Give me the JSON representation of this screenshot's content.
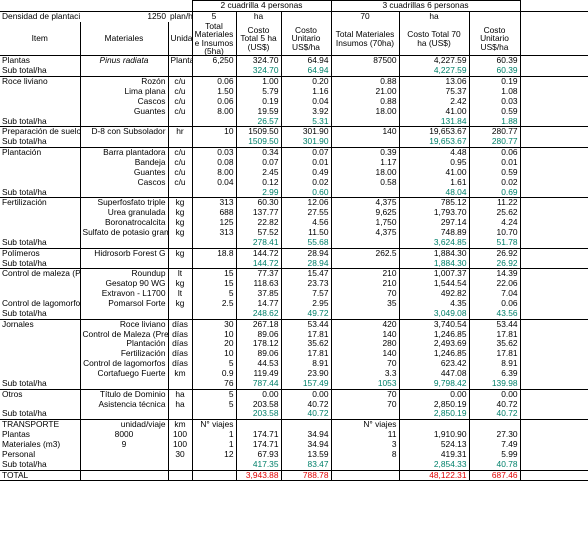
{
  "group_titles": {
    "g1": "2 cuadrilla 4 personas",
    "g2": "3 cuadrillas 6 personas"
  },
  "top_row": [
    "Densidad de plantación",
    "1250",
    "plan/ha",
    "5",
    "ha",
    "",
    "70",
    "ha",
    "",
    ""
  ],
  "header_row": [
    "Item",
    "Materiales",
    "Unidad",
    "Total Materiales e Insumos (5ha)",
    "Costo Total 5 ha (US$)",
    "Costo Unitario US$/ha",
    "Total Materiales Insumos (70ha)",
    "Costo Total 70 ha (US$)",
    "Costo Unitario US$/ha"
  ],
  "rows": [
    {
      "cells": [
        "Plantas",
        "Pinus radiata",
        "Plantas",
        "6,250",
        "324.70",
        "64.94",
        "87500",
        "4,227.59",
        "60.39"
      ],
      "style": "item"
    },
    {
      "cells": [
        "Sub total/ha",
        "",
        "",
        "",
        "324.70",
        "64.94",
        "",
        "4,227.59",
        "60.39"
      ],
      "style": "sub"
    },
    {
      "cells": [
        "Roce liviano",
        "Rozón",
        "c/u",
        "0.06",
        "1.00",
        "0.20",
        "0.88",
        "13.06",
        "0.19"
      ],
      "style": "first"
    },
    {
      "cells": [
        "",
        "Lima plana",
        "c/u",
        "1.50",
        "5.79",
        "1.16",
        "21.00",
        "75.37",
        "1.08"
      ],
      "style": "row"
    },
    {
      "cells": [
        "",
        "Cascos",
        "c/u",
        "0.06",
        "0.19",
        "0.04",
        "0.88",
        "2.42",
        "0.03"
      ],
      "style": "row"
    },
    {
      "cells": [
        "",
        "Guantes",
        "c/u",
        "8.00",
        "19.59",
        "3.92",
        "18.00",
        "41.00",
        "0.59"
      ],
      "style": "row"
    },
    {
      "cells": [
        "Sub total/ha",
        "",
        "",
        "",
        "26.57",
        "5.31",
        "",
        "131.84",
        "1.88"
      ],
      "style": "sub"
    },
    {
      "cells": [
        "Preparación de suelo",
        "D-8 con Subsolador",
        "hr",
        "10",
        "1509.50",
        "301.90",
        "140",
        "19,653.67",
        "280.77"
      ],
      "style": "first"
    },
    {
      "cells": [
        "Sub total/ha",
        "",
        "",
        "",
        "1509.50",
        "301.90",
        "",
        "19,653.67",
        "280.77"
      ],
      "style": "sub"
    },
    {
      "cells": [
        "Plantación",
        "Barra plantadora",
        "c/u",
        "0.03",
        "0.34",
        "0.07",
        "0.39",
        "4.48",
        "0.06"
      ],
      "style": "first"
    },
    {
      "cells": [
        "",
        "Bandeja",
        "c/u",
        "0.08",
        "0.07",
        "0.01",
        "1.17",
        "0.95",
        "0.01"
      ],
      "style": "row"
    },
    {
      "cells": [
        "",
        "Guantes",
        "c/u",
        "8.00",
        "2.45",
        "0.49",
        "18.00",
        "41.00",
        "0.59"
      ],
      "style": "row"
    },
    {
      "cells": [
        "",
        "Cascos",
        "c/u",
        "0.04",
        "0.12",
        "0.02",
        "0.58",
        "1.61",
        "0.02"
      ],
      "style": "row"
    },
    {
      "cells": [
        "Sub total/ha",
        "",
        "",
        "",
        "2.99",
        "0.60",
        "",
        "48.04",
        "0.69"
      ],
      "style": "sub"
    },
    {
      "cells": [
        "Fertilización",
        "Superfosfato triple",
        "kg",
        "313",
        "60.30",
        "12.06",
        "4,375",
        "785.12",
        "11.22"
      ],
      "style": "first"
    },
    {
      "cells": [
        "",
        "Urea granulada",
        "kg",
        "688",
        "137.77",
        "27.55",
        "9,625",
        "1,793.70",
        "25.62"
      ],
      "style": "row"
    },
    {
      "cells": [
        "",
        "Boronatrocalcita",
        "kg",
        "125",
        "22.82",
        "4.56",
        "1,750",
        "297.14",
        "4.24"
      ],
      "style": "row"
    },
    {
      "cells": [
        "",
        "Sulfato de potasio granul.",
        "kg",
        "313",
        "57.52",
        "11.50",
        "4,375",
        "748.89",
        "10.70"
      ],
      "style": "row"
    },
    {
      "cells": [
        "Sub total/ha",
        "",
        "",
        "",
        "278.41",
        "55.68",
        "",
        "3,624.85",
        "51.78"
      ],
      "style": "sub"
    },
    {
      "cells": [
        "Polímeros",
        "Hidrosorb Forest G",
        "kg",
        "18.8",
        "144.72",
        "28.94",
        "262.5",
        "1,884.30",
        "26.92"
      ],
      "style": "first"
    },
    {
      "cells": [
        "Sub total/ha",
        "",
        "",
        "",
        "144.72",
        "28.94",
        "",
        "1,884.30",
        "26.92"
      ],
      "style": "sub"
    },
    {
      "cells": [
        "Control de maleza (Pre)",
        "Roundup",
        "lt",
        "15",
        "77.37",
        "15.47",
        "210",
        "1,007.37",
        "14.39"
      ],
      "style": "first"
    },
    {
      "cells": [
        "",
        "Gesatop 90 WG",
        "kg",
        "15",
        "118.63",
        "23.73",
        "210",
        "1,544.54",
        "22.06"
      ],
      "style": "row"
    },
    {
      "cells": [
        "",
        "Extravon - L1700",
        "lt",
        "5",
        "37.85",
        "7.57",
        "70",
        "492.82",
        "7.04"
      ],
      "style": "row"
    },
    {
      "cells": [
        "Control de lagomorfos",
        "Pomarsol Forte",
        "kg",
        "2.5",
        "14.77",
        "2.95",
        "35",
        "4.35",
        "0.06"
      ],
      "style": "row"
    },
    {
      "cells": [
        "Sub total/ha",
        "",
        "",
        "",
        "248.62",
        "49.72",
        "",
        "3,049.08",
        "43.56"
      ],
      "style": "sub"
    },
    {
      "cells": [
        "Jornales",
        "Roce liviano",
        "días",
        "30",
        "267.18",
        "53.44",
        "420",
        "3,740.54",
        "53.44"
      ],
      "style": "first"
    },
    {
      "cells": [
        "",
        "Control de Maleza (Pre)",
        "días",
        "10",
        "89.06",
        "17.81",
        "140",
        "1,246.85",
        "17.81"
      ],
      "style": "row"
    },
    {
      "cells": [
        "",
        "Plantación",
        "días",
        "20",
        "178.12",
        "35.62",
        "280",
        "2,493.69",
        "35.62"
      ],
      "style": "row"
    },
    {
      "cells": [
        "",
        "Fertilización",
        "días",
        "10",
        "89.06",
        "17.81",
        "140",
        "1,246.85",
        "17.81"
      ],
      "style": "row"
    },
    {
      "cells": [
        "",
        "Control de lagomorfos",
        "días",
        "5",
        "44.53",
        "8.91",
        "70",
        "623.42",
        "8.91"
      ],
      "style": "row"
    },
    {
      "cells": [
        "",
        "Cortafuego Fuerte",
        "km",
        "0.9",
        "119.49",
        "23.90",
        "3.3",
        "447.08",
        "6.39"
      ],
      "style": "row"
    },
    {
      "cells": [
        "Sub total/ha",
        "",
        "",
        "76",
        "787.44",
        "157.49",
        "1053",
        "9,798.42",
        "139.98"
      ],
      "style": "sub"
    },
    {
      "cells": [
        "Otros",
        "Título de Dominio",
        "ha",
        "5",
        "0.00",
        "0.00",
        "70",
        "0.00",
        "0.00"
      ],
      "style": "first"
    },
    {
      "cells": [
        "",
        "Asistencia técnica",
        "ha",
        "5",
        "203.58",
        "40.72",
        "70",
        "2,850.19",
        "40.72"
      ],
      "style": "row"
    },
    {
      "cells": [
        "Sub total/ha",
        "",
        "",
        "",
        "203.58",
        "40.72",
        "",
        "2,850.19",
        "40.72"
      ],
      "style": "sub"
    },
    {
      "cells": [
        "TRANSPORTE",
        "unidad/viaje",
        "km",
        "N° viajes",
        "",
        "",
        "N° viajes",
        "",
        ""
      ],
      "style": "first"
    },
    {
      "cells": [
        "Plantas",
        "8000",
        "100",
        "1",
        "174.71",
        "34.94",
        "11",
        "1,910.90",
        "27.30"
      ],
      "style": "row"
    },
    {
      "cells": [
        "Materiales (m3)",
        "9",
        "100",
        "1",
        "174.71",
        "34.94",
        "3",
        "524.13",
        "7.49"
      ],
      "style": "row"
    },
    {
      "cells": [
        "Personal",
        "",
        "30",
        "12",
        "67.93",
        "13.59",
        "8",
        "419.31",
        "5.99"
      ],
      "style": "row"
    },
    {
      "cells": [
        "Sub total/ha",
        "",
        "",
        "",
        "417.35",
        "83.47",
        "",
        "2,854.33",
        "40.78"
      ],
      "style": "sub"
    },
    {
      "cells": [
        "TOTAL",
        "",
        "",
        "",
        "3,943.88",
        "788.78",
        "",
        "48,122.31",
        "687.46"
      ],
      "style": "total"
    }
  ],
  "colors": {
    "subtotal": "#00806a",
    "total": "#e00000"
  }
}
